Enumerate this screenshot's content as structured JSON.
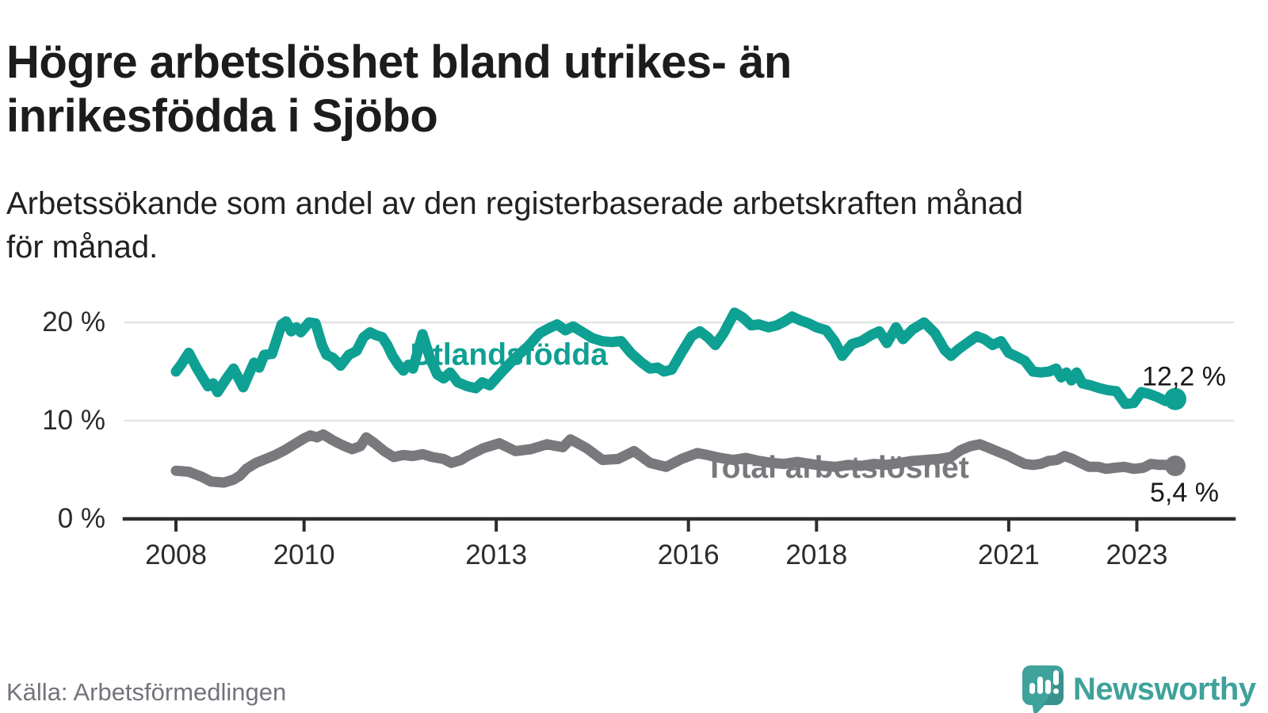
{
  "branding": {
    "wordmark": "Newsworthy"
  },
  "chart_data": {
    "type": "line",
    "title": "Högre arbetslöshet bland utrikes- än\ninrikesfödda i Sjöbo",
    "subtitle": "Arbetssökande som andel av den registerbaserade arbetskraften månad\nför månad.",
    "source": "Källa: Arbetsförmedlingen",
    "unit": "%",
    "grid": true,
    "legend_position": "inline-labels",
    "x_axis": {
      "ticks": [
        2008,
        2010,
        2013,
        2016,
        2018,
        2021,
        2023
      ],
      "tick_labels": [
        "2008",
        "2010",
        "2013",
        "2016",
        "2018",
        "2021",
        "2023"
      ],
      "range": [
        2007.2,
        2024.55
      ]
    },
    "y_axis": {
      "ticks": [
        0,
        10,
        20
      ],
      "tick_labels": [
        "0 %",
        "10 %",
        "20 %"
      ],
      "range": [
        0,
        22.2
      ]
    },
    "series": [
      {
        "id": "utlandsfodda",
        "name": "Utlandsfödda",
        "color": "#0ea093",
        "end_value": 12.2,
        "end_label": "12,2 %",
        "label_pos": {
          "x": 2013.2,
          "y": 15.7
        },
        "points": [
          [
            2008.0,
            15.0
          ],
          [
            2008.08,
            15.7
          ],
          [
            2008.2,
            16.9
          ],
          [
            2008.33,
            15.3
          ],
          [
            2008.5,
            13.5
          ],
          [
            2008.58,
            13.8
          ],
          [
            2008.65,
            12.9
          ],
          [
            2008.78,
            14.2
          ],
          [
            2008.9,
            15.3
          ],
          [
            2009.05,
            13.4
          ],
          [
            2009.15,
            14.9
          ],
          [
            2009.22,
            15.9
          ],
          [
            2009.3,
            15.4
          ],
          [
            2009.38,
            16.7
          ],
          [
            2009.5,
            16.8
          ],
          [
            2009.65,
            19.8
          ],
          [
            2009.72,
            20.1
          ],
          [
            2009.8,
            19.1
          ],
          [
            2009.88,
            19.5
          ],
          [
            2009.95,
            19.0
          ],
          [
            2010.08,
            20.0
          ],
          [
            2010.18,
            19.9
          ],
          [
            2010.28,
            17.7
          ],
          [
            2010.35,
            16.7
          ],
          [
            2010.45,
            16.4
          ],
          [
            2010.57,
            15.6
          ],
          [
            2010.7,
            16.7
          ],
          [
            2010.82,
            17.1
          ],
          [
            2010.93,
            18.5
          ],
          [
            2011.03,
            19.0
          ],
          [
            2011.12,
            18.7
          ],
          [
            2011.22,
            18.5
          ],
          [
            2011.3,
            17.7
          ],
          [
            2011.38,
            16.6
          ],
          [
            2011.47,
            15.7
          ],
          [
            2011.55,
            15.1
          ],
          [
            2011.63,
            15.7
          ],
          [
            2011.7,
            15.3
          ],
          [
            2011.85,
            18.8
          ],
          [
            2011.97,
            16.3
          ],
          [
            2012.08,
            14.7
          ],
          [
            2012.18,
            14.3
          ],
          [
            2012.28,
            14.9
          ],
          [
            2012.4,
            13.9
          ],
          [
            2012.55,
            13.5
          ],
          [
            2012.68,
            13.3
          ],
          [
            2012.78,
            13.9
          ],
          [
            2012.9,
            13.6
          ],
          [
            2013.08,
            14.9
          ],
          [
            2013.28,
            16.3
          ],
          [
            2013.5,
            17.6
          ],
          [
            2013.68,
            18.9
          ],
          [
            2013.82,
            19.4
          ],
          [
            2013.95,
            19.8
          ],
          [
            2014.08,
            19.2
          ],
          [
            2014.2,
            19.6
          ],
          [
            2014.35,
            19.0
          ],
          [
            2014.5,
            18.4
          ],
          [
            2014.65,
            18.1
          ],
          [
            2014.8,
            18.0
          ],
          [
            2014.95,
            18.1
          ],
          [
            2015.1,
            16.9
          ],
          [
            2015.27,
            15.9
          ],
          [
            2015.4,
            15.3
          ],
          [
            2015.52,
            15.4
          ],
          [
            2015.62,
            15.0
          ],
          [
            2015.74,
            15.2
          ],
          [
            2015.89,
            16.9
          ],
          [
            2016.05,
            18.6
          ],
          [
            2016.18,
            19.1
          ],
          [
            2016.3,
            18.5
          ],
          [
            2016.42,
            17.7
          ],
          [
            2016.55,
            18.9
          ],
          [
            2016.72,
            21.0
          ],
          [
            2016.85,
            20.5
          ],
          [
            2016.98,
            19.7
          ],
          [
            2017.1,
            19.8
          ],
          [
            2017.25,
            19.5
          ],
          [
            2017.38,
            19.7
          ],
          [
            2017.5,
            20.1
          ],
          [
            2017.62,
            20.6
          ],
          [
            2017.75,
            20.2
          ],
          [
            2017.88,
            19.9
          ],
          [
            2018.0,
            19.5
          ],
          [
            2018.15,
            19.2
          ],
          [
            2018.28,
            18.1
          ],
          [
            2018.4,
            16.6
          ],
          [
            2018.55,
            17.8
          ],
          [
            2018.7,
            18.1
          ],
          [
            2018.85,
            18.7
          ],
          [
            2018.98,
            19.1
          ],
          [
            2019.1,
            17.9
          ],
          [
            2019.24,
            19.5
          ],
          [
            2019.35,
            18.3
          ],
          [
            2019.5,
            19.3
          ],
          [
            2019.68,
            20.0
          ],
          [
            2019.85,
            18.9
          ],
          [
            2020.0,
            17.2
          ],
          [
            2020.1,
            16.6
          ],
          [
            2020.22,
            17.3
          ],
          [
            2020.35,
            17.9
          ],
          [
            2020.5,
            18.6
          ],
          [
            2020.62,
            18.3
          ],
          [
            2020.75,
            17.7
          ],
          [
            2020.88,
            18.1
          ],
          [
            2021.0,
            16.9
          ],
          [
            2021.13,
            16.5
          ],
          [
            2021.25,
            16.1
          ],
          [
            2021.38,
            15.0
          ],
          [
            2021.5,
            14.9
          ],
          [
            2021.63,
            15.0
          ],
          [
            2021.74,
            15.3
          ],
          [
            2021.82,
            14.4
          ],
          [
            2021.9,
            14.9
          ],
          [
            2021.98,
            14.1
          ],
          [
            2022.06,
            14.9
          ],
          [
            2022.15,
            13.8
          ],
          [
            2022.28,
            13.6
          ],
          [
            2022.42,
            13.3
          ],
          [
            2022.55,
            13.1
          ],
          [
            2022.68,
            13.0
          ],
          [
            2022.82,
            11.7
          ],
          [
            2022.95,
            11.8
          ],
          [
            2023.07,
            12.9
          ],
          [
            2023.2,
            12.7
          ],
          [
            2023.32,
            12.4
          ],
          [
            2023.45,
            12.0
          ],
          [
            2023.6,
            12.2
          ]
        ]
      },
      {
        "id": "total-arbetsloshet",
        "name": "Total arbetslöshet",
        "color": "#78787d",
        "end_value": 5.4,
        "end_label": "5,4 %",
        "label_pos": {
          "x": 2018.32,
          "y": 4.19
        },
        "points": [
          [
            2008.0,
            4.9
          ],
          [
            2008.2,
            4.8
          ],
          [
            2008.4,
            4.3
          ],
          [
            2008.55,
            3.8
          ],
          [
            2008.75,
            3.7
          ],
          [
            2008.9,
            4.0
          ],
          [
            2009.0,
            4.4
          ],
          [
            2009.1,
            5.1
          ],
          [
            2009.25,
            5.7
          ],
          [
            2009.4,
            6.1
          ],
          [
            2009.55,
            6.5
          ],
          [
            2009.7,
            7.0
          ],
          [
            2009.85,
            7.6
          ],
          [
            2010.0,
            8.2
          ],
          [
            2010.1,
            8.5
          ],
          [
            2010.2,
            8.3
          ],
          [
            2010.3,
            8.6
          ],
          [
            2010.45,
            8.0
          ],
          [
            2010.6,
            7.5
          ],
          [
            2010.75,
            7.1
          ],
          [
            2010.88,
            7.4
          ],
          [
            2010.97,
            8.3
          ],
          [
            2011.1,
            7.7
          ],
          [
            2011.25,
            6.9
          ],
          [
            2011.4,
            6.3
          ],
          [
            2011.55,
            6.5
          ],
          [
            2011.7,
            6.4
          ],
          [
            2011.85,
            6.6
          ],
          [
            2012.0,
            6.3
          ],
          [
            2012.18,
            6.1
          ],
          [
            2012.3,
            5.7
          ],
          [
            2012.45,
            6.0
          ],
          [
            2012.55,
            6.4
          ],
          [
            2012.8,
            7.2
          ],
          [
            2013.05,
            7.7
          ],
          [
            2013.3,
            6.9
          ],
          [
            2013.54,
            7.1
          ],
          [
            2013.79,
            7.6
          ],
          [
            2014.04,
            7.3
          ],
          [
            2014.16,
            8.1
          ],
          [
            2014.41,
            7.2
          ],
          [
            2014.66,
            6.0
          ],
          [
            2014.9,
            6.1
          ],
          [
            2015.15,
            6.9
          ],
          [
            2015.4,
            5.7
          ],
          [
            2015.65,
            5.3
          ],
          [
            2015.89,
            6.1
          ],
          [
            2016.14,
            6.7
          ],
          [
            2016.3,
            6.5
          ],
          [
            2016.5,
            6.2
          ],
          [
            2016.7,
            6.0
          ],
          [
            2016.9,
            6.2
          ],
          [
            2017.1,
            5.9
          ],
          [
            2017.3,
            5.7
          ],
          [
            2017.5,
            5.6
          ],
          [
            2017.7,
            5.8
          ],
          [
            2017.9,
            5.6
          ],
          [
            2018.1,
            5.4
          ],
          [
            2018.3,
            5.3
          ],
          [
            2018.5,
            5.5
          ],
          [
            2018.7,
            5.4
          ],
          [
            2018.9,
            5.6
          ],
          [
            2019.1,
            5.5
          ],
          [
            2019.3,
            5.7
          ],
          [
            2019.5,
            5.9
          ],
          [
            2019.7,
            6.0
          ],
          [
            2019.9,
            6.1
          ],
          [
            2020.1,
            6.3
          ],
          [
            2020.25,
            7.0
          ],
          [
            2020.4,
            7.4
          ],
          [
            2020.55,
            7.6
          ],
          [
            2020.7,
            7.2
          ],
          [
            2020.85,
            6.8
          ],
          [
            2021.0,
            6.4
          ],
          [
            2021.12,
            6.0
          ],
          [
            2021.25,
            5.6
          ],
          [
            2021.38,
            5.5
          ],
          [
            2021.5,
            5.6
          ],
          [
            2021.62,
            5.9
          ],
          [
            2021.75,
            6.0
          ],
          [
            2021.87,
            6.4
          ],
          [
            2022.0,
            6.1
          ],
          [
            2022.12,
            5.7
          ],
          [
            2022.25,
            5.3
          ],
          [
            2022.4,
            5.3
          ],
          [
            2022.52,
            5.1
          ],
          [
            2022.65,
            5.2
          ],
          [
            2022.8,
            5.3
          ],
          [
            2022.95,
            5.1
          ],
          [
            2023.1,
            5.2
          ],
          [
            2023.22,
            5.6
          ],
          [
            2023.35,
            5.5
          ],
          [
            2023.48,
            5.5
          ],
          [
            2023.6,
            5.4
          ]
        ]
      }
    ]
  }
}
